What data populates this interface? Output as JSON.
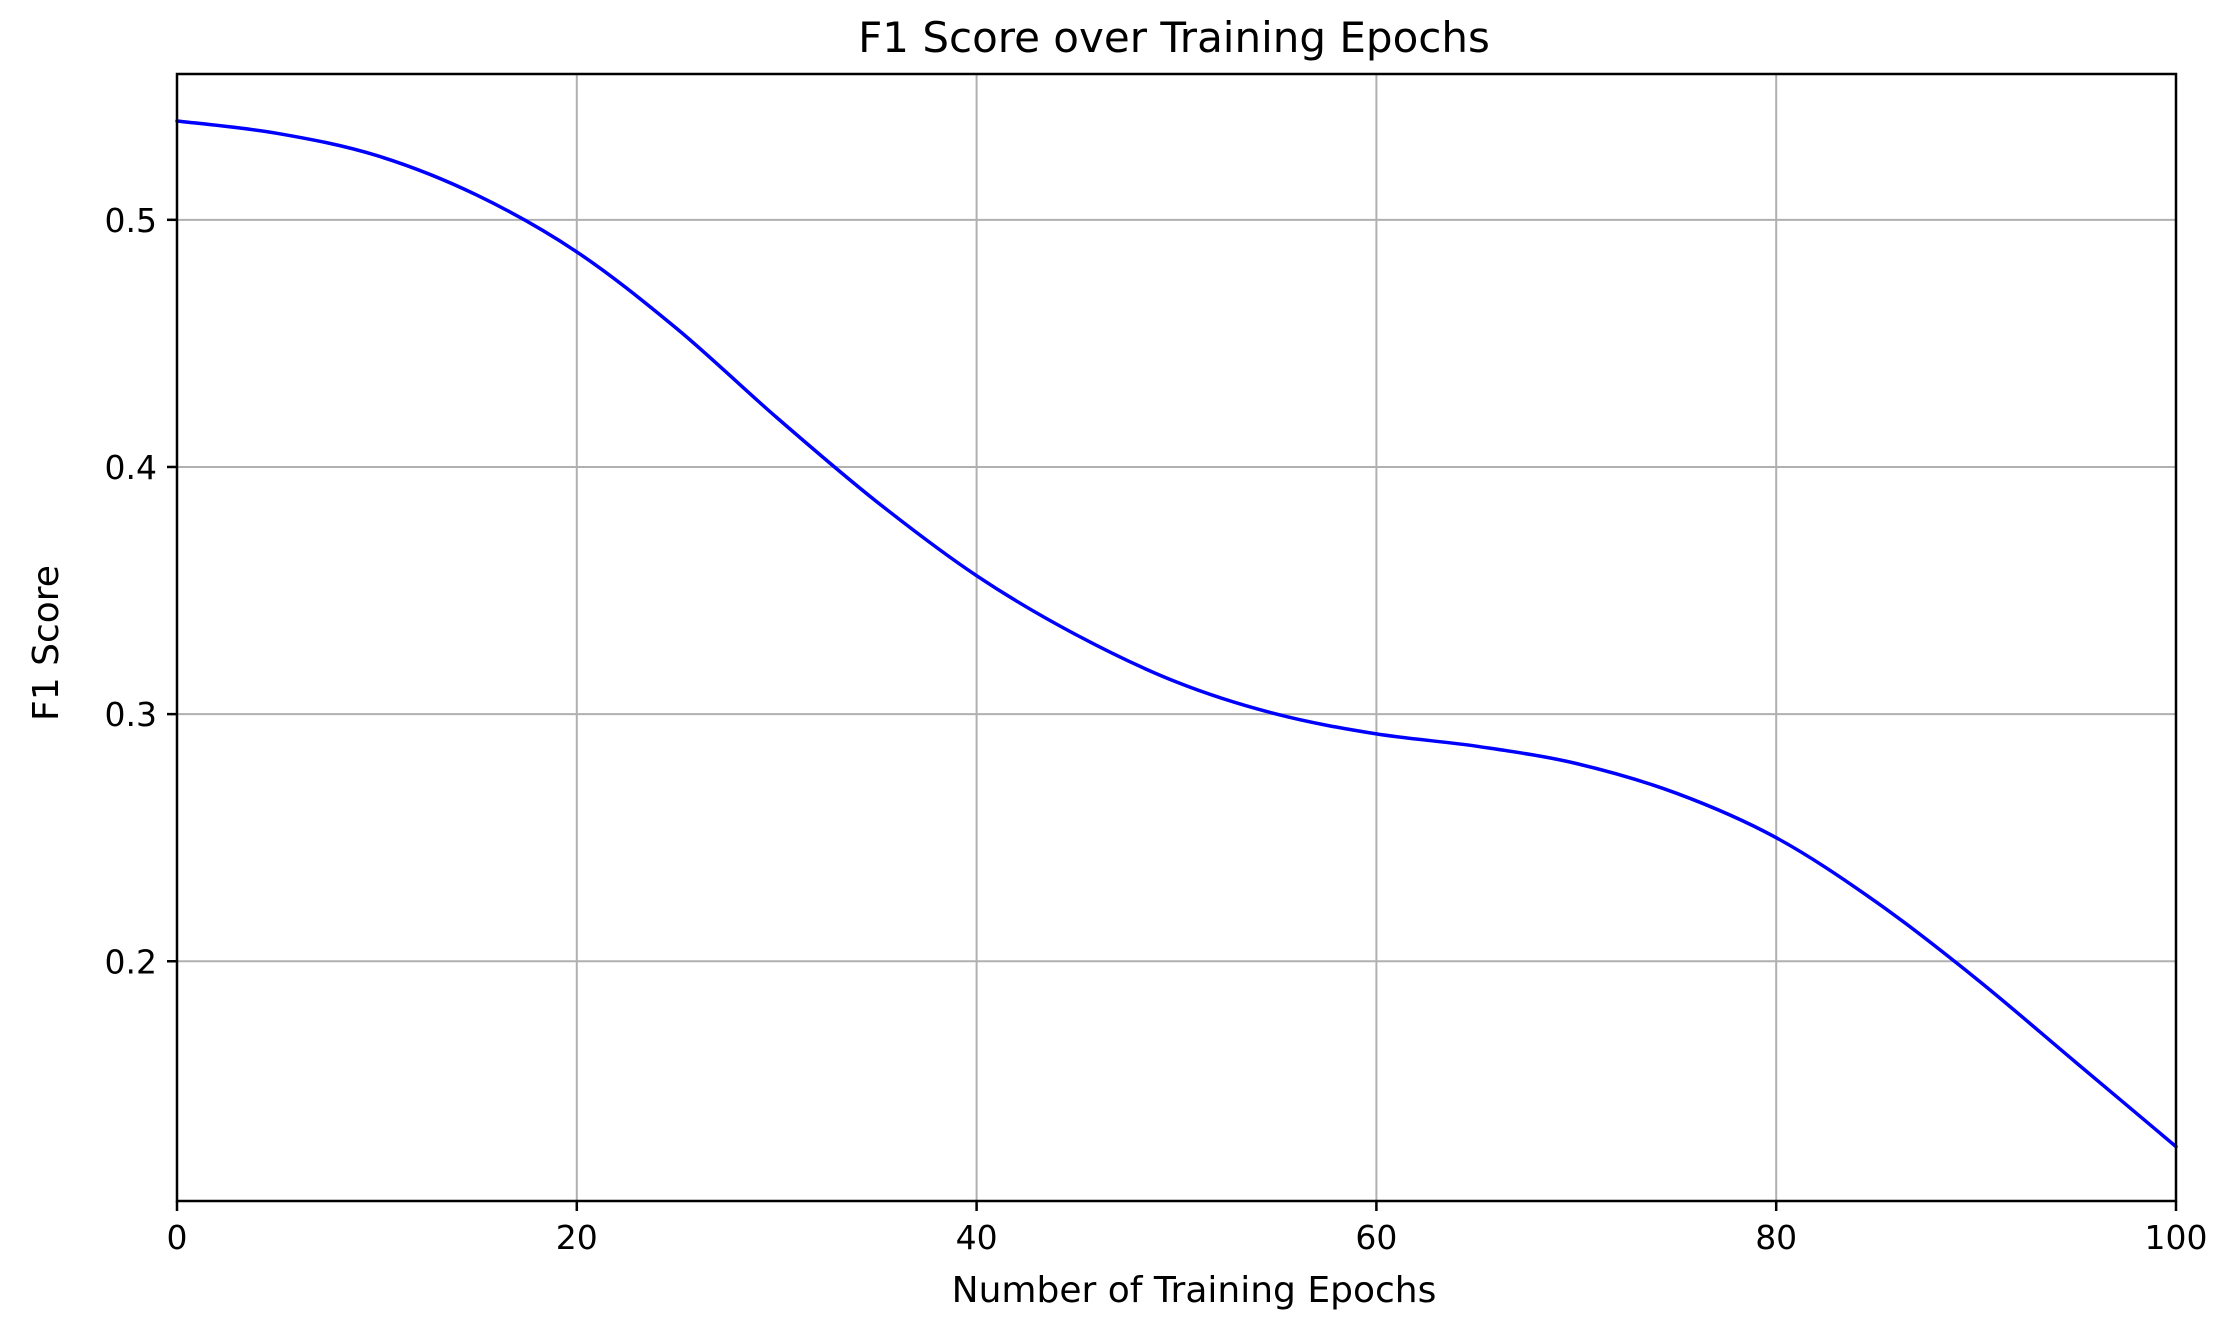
{
  "chart_data": {
    "type": "line",
    "title": "F1 Score over Training Epochs",
    "xlabel": "Number of Training Epochs",
    "ylabel": "F1 Score",
    "xlim": [
      0,
      100
    ],
    "ylim": [
      0.103,
      0.559
    ],
    "x_ticks": [
      0,
      20,
      40,
      60,
      80,
      100
    ],
    "y_ticks": [
      0.2,
      0.3,
      0.4,
      0.5
    ],
    "x_tick_labels": [
      "0",
      "20",
      "40",
      "60",
      "80",
      "100"
    ],
    "y_tick_labels": [
      "0.2",
      "0.3",
      "0.4",
      "0.5"
    ],
    "grid": true,
    "series": [
      {
        "color": "#0000ff",
        "x": [
          0,
          5,
          10,
          15,
          20,
          25,
          30,
          35,
          40,
          45,
          50,
          55,
          60,
          65,
          70,
          75,
          80,
          85,
          90,
          95,
          100
        ],
        "y": [
          0.54,
          0.535,
          0.526,
          0.51,
          0.487,
          0.456,
          0.42,
          0.386,
          0.356,
          0.332,
          0.313,
          0.3,
          0.292,
          0.287,
          0.28,
          0.268,
          0.25,
          0.224,
          0.193,
          0.159,
          0.125
        ]
      }
    ]
  }
}
